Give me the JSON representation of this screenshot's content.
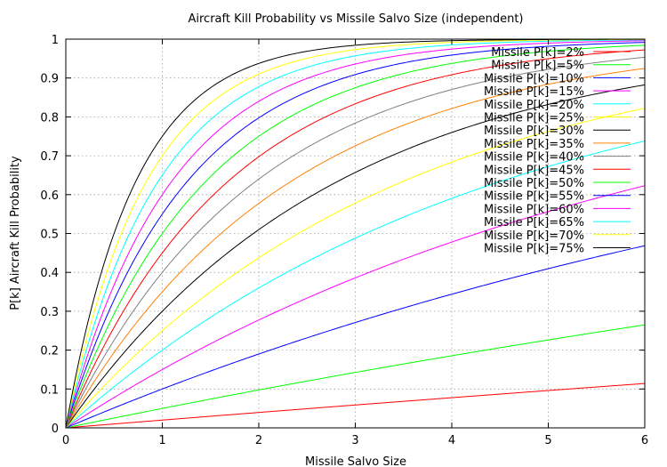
{
  "chart_data": {
    "type": "line",
    "title": "Aircraft Kill Probability vs Missile Salvo Size (independent)",
    "xlabel": "Missile Salvo Size",
    "ylabel": "P[k] Aircraft Kill Probability",
    "xlim": [
      0,
      6
    ],
    "ylim": [
      0,
      1
    ],
    "xticks": [
      "0",
      "1",
      "2",
      "3",
      "4",
      "5",
      "6"
    ],
    "yticks": [
      "0",
      "0.1",
      "0.2",
      "0.3",
      "0.4",
      "0.5",
      "0.6",
      "0.7",
      "0.8",
      "0.9",
      "1"
    ],
    "grid": true,
    "legend_position": "top-right",
    "formula": "1 - (1 - p)^n",
    "series": [
      {
        "name": "Missile P[k]=2%",
        "p": 0.02,
        "color": "#ff0000"
      },
      {
        "name": "Missile P[k]=5%",
        "p": 0.05,
        "color": "#00ff00"
      },
      {
        "name": "Missile P[k]=10%",
        "p": 0.1,
        "color": "#0000ff"
      },
      {
        "name": "Missile P[k]=15%",
        "p": 0.15,
        "color": "#ff00ff"
      },
      {
        "name": "Missile P[k]=20%",
        "p": 0.2,
        "color": "#00ffff"
      },
      {
        "name": "Missile P[k]=25%",
        "p": 0.25,
        "color": "#ffff00"
      },
      {
        "name": "Missile P[k]=30%",
        "p": 0.3,
        "color": "#000000"
      },
      {
        "name": "Missile P[k]=35%",
        "p": 0.35,
        "color": "#ff8000"
      },
      {
        "name": "Missile P[k]=40%",
        "p": 0.4,
        "color": "#808080"
      },
      {
        "name": "Missile P[k]=45%",
        "p": 0.45,
        "color": "#ff0000"
      },
      {
        "name": "Missile P[k]=50%",
        "p": 0.5,
        "color": "#00ff00"
      },
      {
        "name": "Missile P[k]=55%",
        "p": 0.55,
        "color": "#0000ff"
      },
      {
        "name": "Missile P[k]=60%",
        "p": 0.6,
        "color": "#ff00ff"
      },
      {
        "name": "Missile P[k]=65%",
        "p": 0.65,
        "color": "#00ffff"
      },
      {
        "name": "Missile P[k]=70%",
        "p": 0.7,
        "color": "#ffff00"
      },
      {
        "name": "Missile P[k]=75%",
        "p": 0.75,
        "color": "#000000"
      }
    ]
  }
}
